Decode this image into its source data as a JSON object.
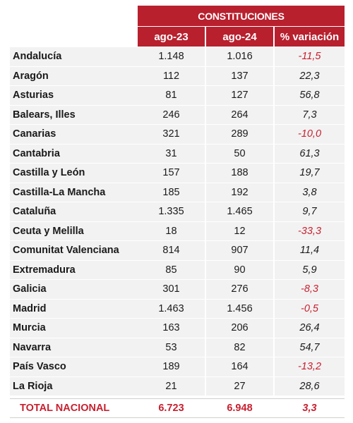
{
  "header": {
    "title": "CONSTITUCIONES",
    "columns": [
      "ago-23",
      "ago-24",
      "% variación"
    ]
  },
  "rows": [
    {
      "region": "Andalucía",
      "ago23": "1.148",
      "ago24": "1.016",
      "variacion": "-11,5"
    },
    {
      "region": "Aragón",
      "ago23": "112",
      "ago24": "137",
      "variacion": "22,3"
    },
    {
      "region": "Asturias",
      "ago23": "81",
      "ago24": "127",
      "variacion": "56,8"
    },
    {
      "region": "Balears, Illes",
      "ago23": "246",
      "ago24": "264",
      "variacion": "7,3"
    },
    {
      "region": "Canarias",
      "ago23": "321",
      "ago24": "289",
      "variacion": "-10,0"
    },
    {
      "region": "Cantabria",
      "ago23": "31",
      "ago24": "50",
      "variacion": "61,3"
    },
    {
      "region": "Castilla y León",
      "ago23": "157",
      "ago24": "188",
      "variacion": "19,7"
    },
    {
      "region": "Castilla-La Mancha",
      "ago23": "185",
      "ago24": "192",
      "variacion": "3,8"
    },
    {
      "region": "Cataluña",
      "ago23": "1.335",
      "ago24": "1.465",
      "variacion": "9,7"
    },
    {
      "region": "Ceuta y Melilla",
      "ago23": "18",
      "ago24": "12",
      "variacion": "-33,3"
    },
    {
      "region": "Comunitat Valenciana",
      "ago23": "814",
      "ago24": "907",
      "variacion": "11,4"
    },
    {
      "region": "Extremadura",
      "ago23": "85",
      "ago24": "90",
      "variacion": "5,9"
    },
    {
      "region": "Galicia",
      "ago23": "301",
      "ago24": "276",
      "variacion": "-8,3"
    },
    {
      "region": "Madrid",
      "ago23": "1.463",
      "ago24": "1.456",
      "variacion": "-0,5"
    },
    {
      "region": "Murcia",
      "ago23": "163",
      "ago24": "206",
      "variacion": "26,4"
    },
    {
      "region": "Navarra",
      "ago23": "53",
      "ago24": "82",
      "variacion": "54,7"
    },
    {
      "region": "País Vasco",
      "ago23": "189",
      "ago24": "164",
      "variacion": "-13,2"
    },
    {
      "region": "La Rioja",
      "ago23": "21",
      "ago24": "27",
      "variacion": "28,6"
    }
  ],
  "total": {
    "region": "TOTAL NACIONAL",
    "ago23": "6.723",
    "ago24": "6.948",
    "variacion": "3,3"
  },
  "colors": {
    "header_bg": "#b8202e",
    "negative": "#c8202f",
    "row_bg": "#f2f2f2"
  }
}
